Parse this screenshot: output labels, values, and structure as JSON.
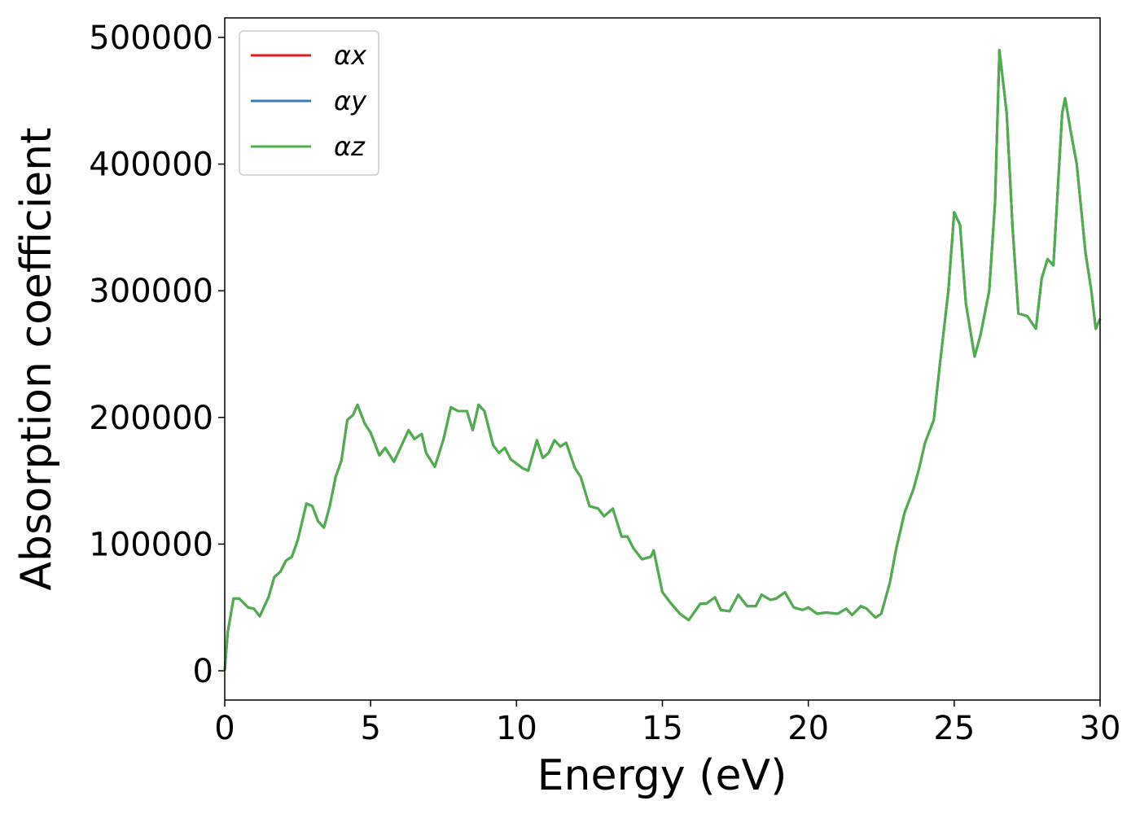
{
  "chart_data": {
    "type": "line",
    "xlabel": "Energy (eV)",
    "ylabel": "Absorption coefficient",
    "x": [
      0,
      0.1,
      0.3,
      0.5,
      0.8,
      1.0,
      1.2,
      1.5,
      1.7,
      1.9,
      2.1,
      2.3,
      2.5,
      2.8,
      3.0,
      3.2,
      3.4,
      3.6,
      3.8,
      4.0,
      4.2,
      4.4,
      4.55,
      4.8,
      5.0,
      5.3,
      5.5,
      5.8,
      6.0,
      6.3,
      6.5,
      6.75,
      6.9,
      7.2,
      7.5,
      7.75,
      8.0,
      8.3,
      8.5,
      8.7,
      8.9,
      9.2,
      9.4,
      9.6,
      9.8,
      10.2,
      10.4,
      10.7,
      10.9,
      11.1,
      11.3,
      11.5,
      11.7,
      12.0,
      12.2,
      12.5,
      12.8,
      13.0,
      13.3,
      13.6,
      13.8,
      14.0,
      14.3,
      14.6,
      14.7,
      15.0,
      15.3,
      15.6,
      15.9,
      16.3,
      16.5,
      16.8,
      17.0,
      17.3,
      17.6,
      17.9,
      18.2,
      18.4,
      18.7,
      18.9,
      19.2,
      19.5,
      19.8,
      20.0,
      20.3,
      20.6,
      21.0,
      21.3,
      21.5,
      21.8,
      22.0,
      22.3,
      22.5,
      22.8,
      23.0,
      23.3,
      23.6,
      23.8,
      24.0,
      24.3,
      24.5,
      24.8,
      25.0,
      25.2,
      25.4,
      25.7,
      25.9,
      26.2,
      26.4,
      26.55,
      26.8,
      27.0,
      27.2,
      27.5,
      27.8,
      28.0,
      28.2,
      28.4,
      28.7,
      28.8,
      29.0,
      29.2,
      29.5,
      29.7,
      29.85,
      30.0
    ],
    "series": [
      {
        "name": "αx",
        "color": "#e41a1c",
        "values": [
          0,
          30000,
          57000,
          57000,
          50000,
          49000,
          43000,
          58000,
          74000,
          78000,
          87000,
          90000,
          103000,
          132000,
          130000,
          118000,
          113000,
          130000,
          153000,
          166000,
          198000,
          202000,
          210000,
          195000,
          188000,
          170000,
          176000,
          165000,
          175000,
          190000,
          183000,
          187000,
          172000,
          161000,
          183000,
          208000,
          205000,
          205000,
          190000,
          210000,
          205000,
          178000,
          172000,
          176000,
          167000,
          160000,
          158000,
          182000,
          168000,
          172000,
          182000,
          177000,
          180000,
          160000,
          153000,
          130000,
          128000,
          122000,
          128000,
          106000,
          106000,
          97000,
          88000,
          90000,
          95000,
          62000,
          53000,
          45000,
          40000,
          53000,
          53000,
          58000,
          48000,
          47000,
          60000,
          51000,
          51000,
          60000,
          56000,
          57000,
          62000,
          50000,
          48000,
          50000,
          45000,
          46000,
          45000,
          49000,
          44000,
          51000,
          49000,
          42000,
          45000,
          70000,
          95000,
          125000,
          143000,
          160000,
          180000,
          198000,
          240000,
          300000,
          362000,
          352000,
          290000,
          248000,
          265000,
          300000,
          370000,
          490000,
          440000,
          350000,
          282000,
          280000,
          270000,
          310000,
          325000,
          320000,
          440000,
          452000,
          425000,
          400000,
          330000,
          300000,
          270000,
          278000
        ]
      },
      {
        "name": "αy",
        "color": "#377eb8",
        "values": [
          0,
          30000,
          57000,
          57000,
          50000,
          49000,
          43000,
          58000,
          74000,
          78000,
          87000,
          90000,
          103000,
          132000,
          130000,
          118000,
          113000,
          130000,
          153000,
          166000,
          198000,
          202000,
          210000,
          195000,
          188000,
          170000,
          176000,
          165000,
          175000,
          190000,
          183000,
          187000,
          172000,
          161000,
          183000,
          208000,
          205000,
          205000,
          190000,
          210000,
          205000,
          178000,
          172000,
          176000,
          167000,
          160000,
          158000,
          182000,
          168000,
          172000,
          182000,
          177000,
          180000,
          160000,
          153000,
          130000,
          128000,
          122000,
          128000,
          106000,
          106000,
          97000,
          88000,
          90000,
          95000,
          62000,
          53000,
          45000,
          40000,
          53000,
          53000,
          58000,
          48000,
          47000,
          60000,
          51000,
          51000,
          60000,
          56000,
          57000,
          62000,
          50000,
          48000,
          50000,
          45000,
          46000,
          45000,
          49000,
          44000,
          51000,
          49000,
          42000,
          45000,
          70000,
          95000,
          125000,
          143000,
          160000,
          180000,
          198000,
          240000,
          300000,
          362000,
          352000,
          290000,
          248000,
          265000,
          300000,
          370000,
          490000,
          440000,
          350000,
          282000,
          280000,
          270000,
          310000,
          325000,
          320000,
          440000,
          452000,
          425000,
          400000,
          330000,
          300000,
          270000,
          278000
        ]
      },
      {
        "name": "αz",
        "color": "#4daf4a",
        "values": [
          0,
          30000,
          57000,
          57000,
          50000,
          49000,
          43000,
          58000,
          74000,
          78000,
          87000,
          90000,
          103000,
          132000,
          130000,
          118000,
          113000,
          130000,
          153000,
          166000,
          198000,
          202000,
          210000,
          195000,
          188000,
          170000,
          176000,
          165000,
          175000,
          190000,
          183000,
          187000,
          172000,
          161000,
          183000,
          208000,
          205000,
          205000,
          190000,
          210000,
          205000,
          178000,
          172000,
          176000,
          167000,
          160000,
          158000,
          182000,
          168000,
          172000,
          182000,
          177000,
          180000,
          160000,
          153000,
          130000,
          128000,
          122000,
          128000,
          106000,
          106000,
          97000,
          88000,
          90000,
          95000,
          62000,
          53000,
          45000,
          40000,
          53000,
          53000,
          58000,
          48000,
          47000,
          60000,
          51000,
          51000,
          60000,
          56000,
          57000,
          62000,
          50000,
          48000,
          50000,
          45000,
          46000,
          45000,
          49000,
          44000,
          51000,
          49000,
          42000,
          45000,
          70000,
          95000,
          125000,
          143000,
          160000,
          180000,
          198000,
          240000,
          300000,
          362000,
          352000,
          290000,
          248000,
          265000,
          300000,
          370000,
          490000,
          440000,
          350000,
          282000,
          280000,
          270000,
          310000,
          325000,
          320000,
          440000,
          452000,
          425000,
          400000,
          330000,
          300000,
          270000,
          278000
        ]
      }
    ],
    "xlim": [
      0,
      30
    ],
    "xticks": [
      0,
      5,
      10,
      15,
      20,
      25,
      30
    ],
    "ylim": [
      -23100,
      515400
    ],
    "yticks": [
      0,
      100000,
      200000,
      300000,
      400000,
      500000
    ],
    "grid": false,
    "legend": "upper left"
  }
}
